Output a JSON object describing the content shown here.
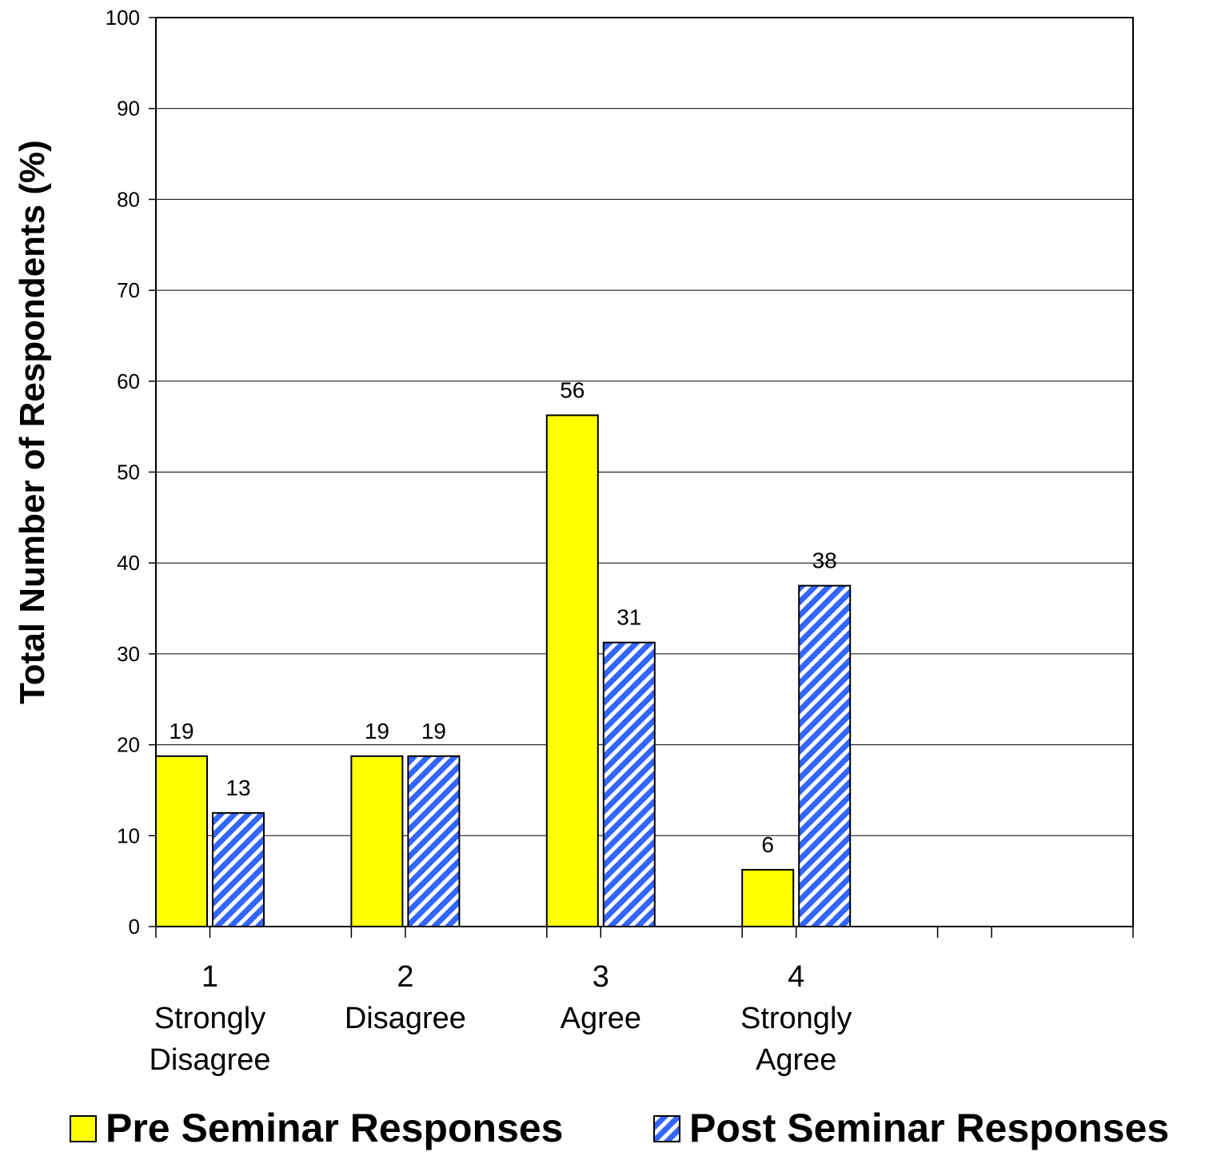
{
  "chart_data": {
    "type": "bar",
    "ylabel": "Total Number of Respondents (%)",
    "ylim": [
      0,
      100
    ],
    "yticks": [
      0,
      10,
      20,
      30,
      40,
      50,
      60,
      70,
      80,
      90,
      100
    ],
    "grid": true,
    "legend_position": "bottom",
    "categories": [
      {
        "number": "1",
        "label": [
          "Strongly",
          "Disagree"
        ]
      },
      {
        "number": "2",
        "label": [
          "Disagree"
        ]
      },
      {
        "number": "3",
        "label": [
          "Agree"
        ]
      },
      {
        "number": "4",
        "label": [
          "Strongly",
          "Agree"
        ]
      }
    ],
    "extra_empty_slots": 1,
    "series": [
      {
        "name": "Pre Seminar Responses",
        "values": [
          18.75,
          18.75,
          56.25,
          6.25
        ],
        "data_labels": [
          "19",
          "19",
          "56",
          "6"
        ],
        "color": "#ffff00",
        "pattern": "solid"
      },
      {
        "name": "Post Seminar Responses",
        "values": [
          12.5,
          18.75,
          31.25,
          37.5
        ],
        "data_labels": [
          "13",
          "19",
          "31",
          "38"
        ],
        "color": "#3366ff",
        "pattern": "diagonal-stripes"
      }
    ]
  }
}
